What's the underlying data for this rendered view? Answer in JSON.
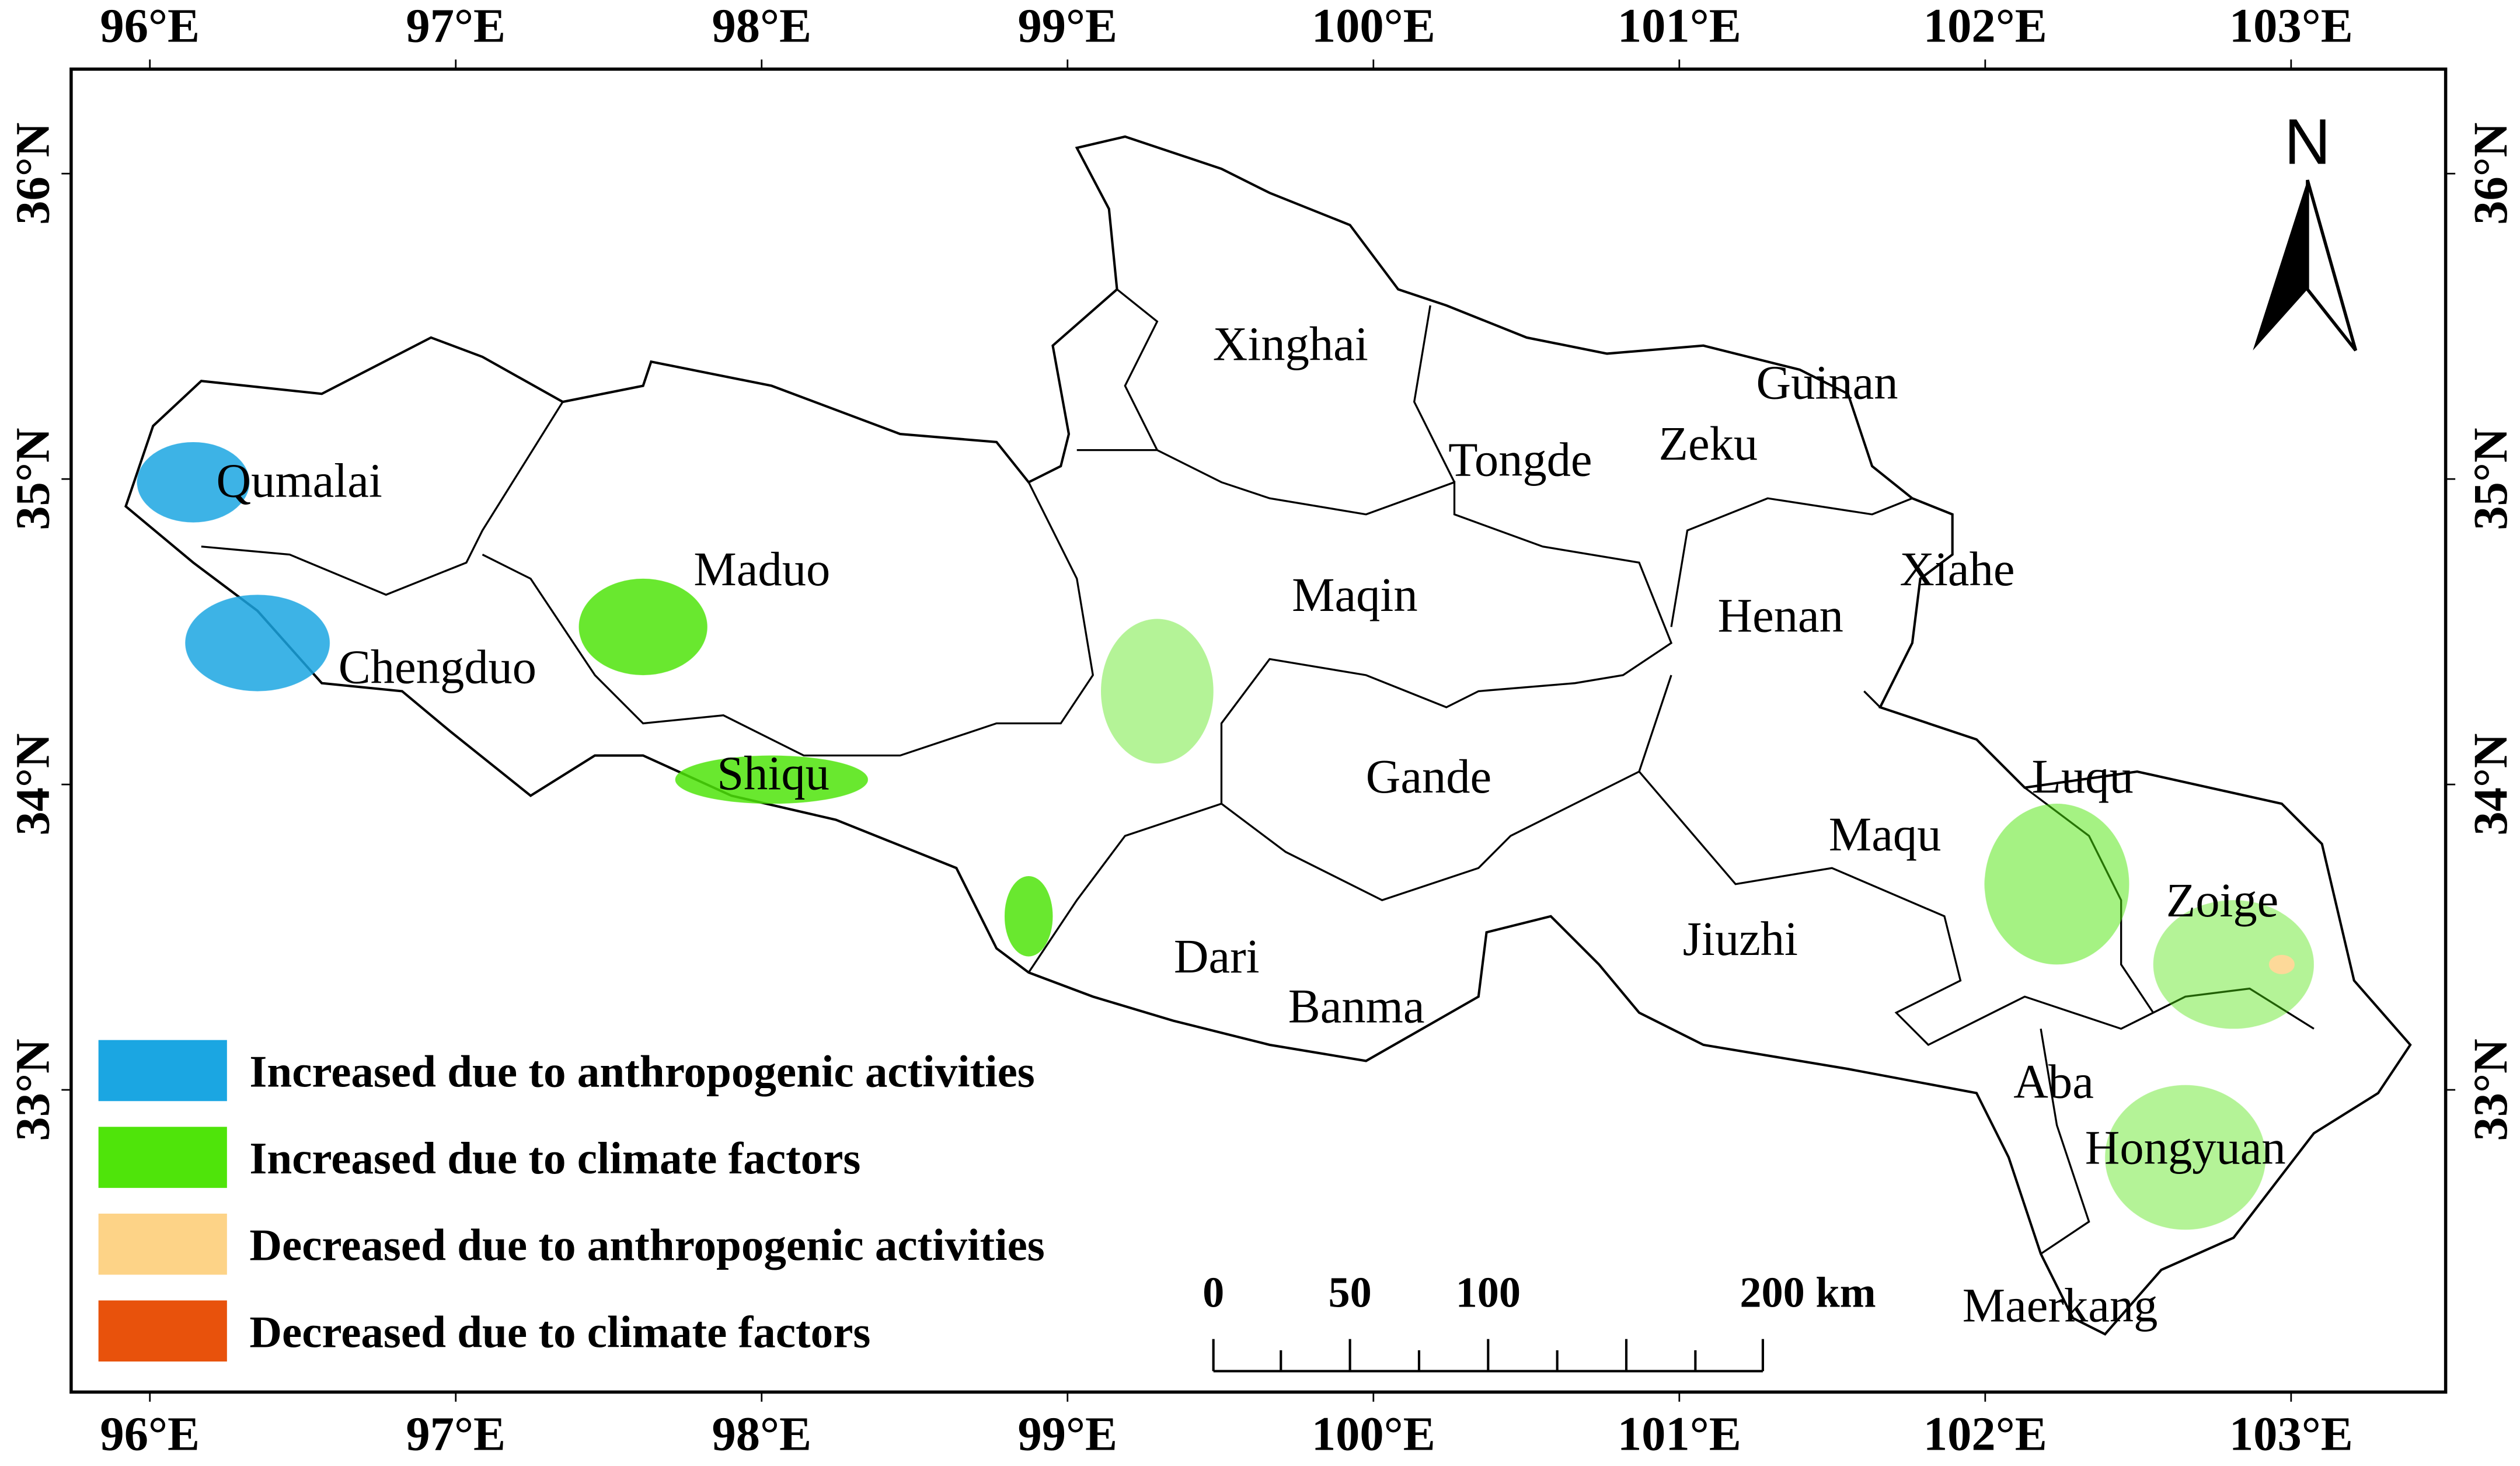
{
  "north_label": "N",
  "longitude_labels": [
    "96°E",
    "97°E",
    "98°E",
    "99°E",
    "100°E",
    "101°E",
    "102°E",
    "103°E"
  ],
  "latitude_labels": [
    "36°N",
    "35°N",
    "34°N",
    "33°N"
  ],
  "regions": [
    "Xinghai",
    "Guinan",
    "Tongde",
    "Zeku",
    "Qumalai",
    "Maduo",
    "Maqin",
    "Xiahe",
    "Henan",
    "Chengduo",
    "Shiqu",
    "Gande",
    "Luqu",
    "Maqu",
    "Zoige",
    "Jiuzhi",
    "Dari",
    "Banma",
    "Aba",
    "Hongyuan",
    "Maerkang"
  ],
  "legend": [
    {
      "label": "Increased due to anthropogenic activities",
      "color": "#1ba6e2"
    },
    {
      "label": "Increased due to climate factors",
      "color": "#4fe40a"
    },
    {
      "label": "Decreased due to anthropogenic activities",
      "color": "#fdd387"
    },
    {
      "label": "Decreased due to climate factors",
      "color": "#e8520c"
    }
  ],
  "scale_bar": [
    "0",
    "50",
    "100",
    "200 km"
  ]
}
